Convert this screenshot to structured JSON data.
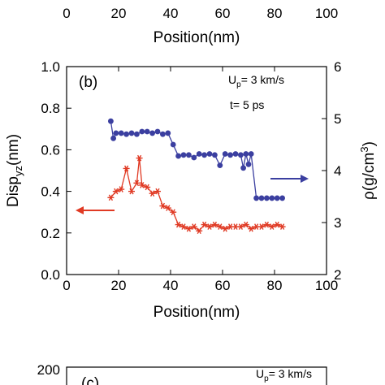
{
  "top_axis": {
    "ticks": [
      "0",
      "20",
      "40",
      "60",
      "80",
      "100"
    ],
    "xlabel": "Position(nm)"
  },
  "chart_data": [
    {
      "type": "line",
      "panel": "(b)",
      "annotation": {
        "line1_main": "U",
        "line1_sub": "p",
        "line1_rest": "= 3 km/s",
        "line2": "t= 5 ps"
      },
      "xlabel": "Position(nm)",
      "ylabel_left": {
        "main": "Disp",
        "sub": "yz",
        "rest": "(nm)"
      },
      "ylabel_right": {
        "main": "ρ(g/cm",
        "sup": "3",
        "rest": ")"
      },
      "xlim": [
        0,
        100
      ],
      "ylim_left": [
        0.0,
        1.0
      ],
      "ylim_right": [
        2,
        6
      ],
      "x_ticks": [
        "0",
        "20",
        "40",
        "60",
        "80",
        "100"
      ],
      "y_ticks_left": [
        "0.0",
        "0.2",
        "0.4",
        "0.6",
        "0.8",
        "1.0"
      ],
      "y_ticks_right": [
        "2",
        "3",
        "4",
        "5",
        "6"
      ],
      "grid": false,
      "colors": {
        "density": "#3b3fa0",
        "disp": "#e03a24"
      },
      "series": [
        {
          "axis": "right",
          "marker": "circle",
          "x": [
            17,
            18,
            19,
            21,
            23,
            25,
            27,
            29,
            31,
            33,
            35,
            37,
            39,
            41,
            43,
            45,
            47,
            49,
            51,
            53,
            55,
            57,
            59,
            61,
            63,
            65,
            67,
            68,
            69,
            70,
            71,
            73,
            75,
            77,
            79,
            81,
            83
          ],
          "y": [
            4.95,
            4.62,
            4.72,
            4.72,
            4.7,
            4.72,
            4.7,
            4.75,
            4.75,
            4.72,
            4.75,
            4.7,
            4.72,
            4.5,
            4.28,
            4.3,
            4.3,
            4.25,
            4.32,
            4.3,
            4.32,
            4.3,
            4.1,
            4.32,
            4.3,
            4.32,
            4.3,
            4.05,
            4.32,
            4.12,
            4.32,
            3.47,
            3.47,
            3.47,
            3.47,
            3.47,
            3.47
          ]
        },
        {
          "axis": "left",
          "marker": "asterisk",
          "x": [
            17,
            19,
            21,
            23,
            25,
            27,
            28,
            29,
            31,
            33,
            35,
            37,
            39,
            41,
            43,
            45,
            47,
            49,
            51,
            53,
            55,
            57,
            59,
            61,
            63,
            65,
            67,
            69,
            71,
            73,
            75,
            77,
            79,
            81,
            83
          ],
          "y": [
            0.37,
            0.4,
            0.41,
            0.51,
            0.4,
            0.44,
            0.56,
            0.43,
            0.42,
            0.39,
            0.4,
            0.33,
            0.32,
            0.3,
            0.24,
            0.23,
            0.22,
            0.23,
            0.21,
            0.24,
            0.23,
            0.24,
            0.23,
            0.22,
            0.23,
            0.23,
            0.23,
            0.24,
            0.22,
            0.23,
            0.23,
            0.24,
            0.23,
            0.24,
            0.23
          ]
        }
      ]
    }
  ],
  "panel_c": {
    "label": "(c)",
    "y_tick_top": "200",
    "annotation": {
      "main": "U",
      "sub": "p",
      "rest": "= 3 km/s"
    }
  }
}
